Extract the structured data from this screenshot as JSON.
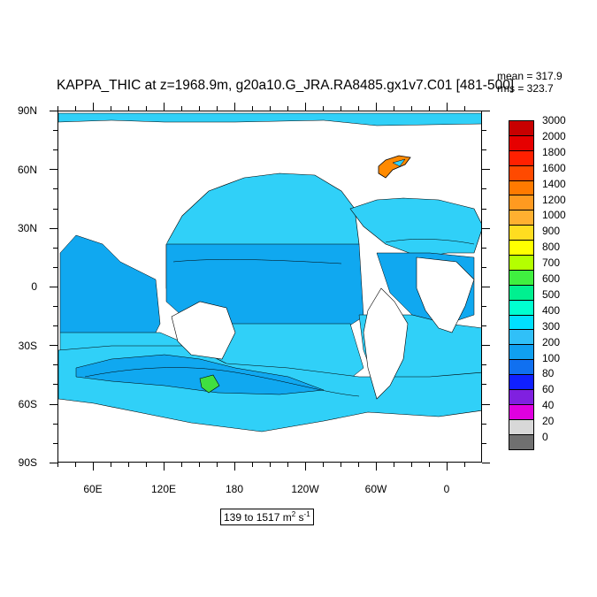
{
  "title": "KAPPA_THIC at z=1968.9m, g20a10.G_JRA.RA8485.gx1v7.C01 [481-500]",
  "stats": {
    "mean": "mean = 317.9",
    "rms": "rms = 323.7"
  },
  "axes": {
    "lat_labels": [
      "90N",
      "60N",
      "30N",
      "0",
      "30S",
      "60S",
      "90S"
    ],
    "lon_labels": [
      "60E",
      "120E",
      "180",
      "120W",
      "60W",
      "0"
    ]
  },
  "colorbar": {
    "labels": [
      "3000",
      "2000",
      "1800",
      "1600",
      "1400",
      "1200",
      "1000",
      "900",
      "800",
      "700",
      "600",
      "500",
      "400",
      "300",
      "200",
      "100",
      "80",
      "60",
      "40",
      "20",
      "0"
    ],
    "colors": [
      "#c80000",
      "#e60000",
      "#ff2000",
      "#ff4a00",
      "#ff7a00",
      "#ff9a20",
      "#ffb030",
      "#ffdd20",
      "#ffff00",
      "#b4ff00",
      "#40f040",
      "#00f090",
      "#00ffd0",
      "#00e0ff",
      "#30c0f8",
      "#10a0f0",
      "#1070f0",
      "#1020ff",
      "#8020e0",
      "#e000e0",
      "#d8d8d8",
      "#707070"
    ]
  },
  "range": {
    "text": "139 to 1517 m",
    "sup2": "2",
    "unit2": " s",
    "sup3": "-1"
  },
  "chart_data": {
    "type": "heatmap",
    "title": "KAPPA_THIC at z=1968.9m, g20a10.G_JRA.RA8485.gx1v7.C01 [481-500]",
    "variable": "KAPPA_THIC",
    "depth_m": 1968.9,
    "units": "m^2 s^-1",
    "mean": 317.9,
    "rms": 323.7,
    "min": 139,
    "max": 1517,
    "lon_range": [
      30,
      390
    ],
    "lat_range": [
      -90,
      90
    ],
    "color_levels": [
      0,
      20,
      40,
      60,
      80,
      100,
      200,
      300,
      400,
      500,
      600,
      700,
      800,
      900,
      1000,
      1200,
      1400,
      1600,
      1800,
      2000,
      3000
    ]
  }
}
